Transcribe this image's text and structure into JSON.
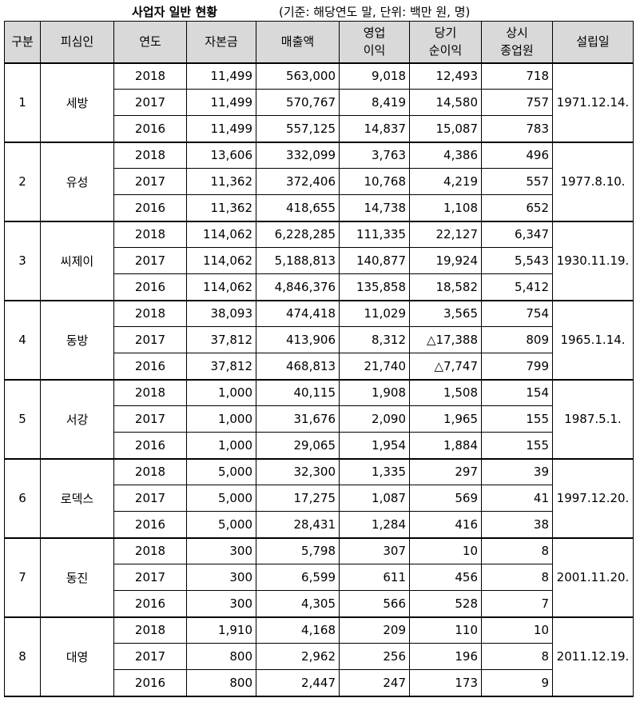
{
  "title": "사업자 일반 현황",
  "note": "(기준: 해당연도 말, 단위: 백만 원, 명)",
  "headers": {
    "no": "구분",
    "company": "피심인",
    "year": "연도",
    "capital": "자본금",
    "sales": "매출액",
    "op_line1": "영업",
    "op_line2": "이익",
    "net_line1": "당기",
    "net_line2": "순이익",
    "emp_line1": "상시",
    "emp_line2": "종업원",
    "founded": "설립일"
  },
  "companies": [
    {
      "no": "1",
      "name": "세방",
      "founded": "1971.12.14.",
      "rows": [
        {
          "year": "2018",
          "capital": "11,499",
          "sales": "563,000",
          "op": "9,018",
          "net": "12,493",
          "emp": "718"
        },
        {
          "year": "2017",
          "capital": "11,499",
          "sales": "570,767",
          "op": "8,419",
          "net": "14,580",
          "emp": "757"
        },
        {
          "year": "2016",
          "capital": "11,499",
          "sales": "557,125",
          "op": "14,837",
          "net": "15,087",
          "emp": "783"
        }
      ]
    },
    {
      "no": "2",
      "name": "유성",
      "founded": "1977.8.10.",
      "rows": [
        {
          "year": "2018",
          "capital": "13,606",
          "sales": "332,099",
          "op": "3,763",
          "net": "4,386",
          "emp": "496"
        },
        {
          "year": "2017",
          "capital": "11,362",
          "sales": "372,406",
          "op": "10,768",
          "net": "4,219",
          "emp": "557"
        },
        {
          "year": "2016",
          "capital": "11,362",
          "sales": "418,655",
          "op": "14,738",
          "net": "1,108",
          "emp": "652"
        }
      ]
    },
    {
      "no": "3",
      "name": "씨제이",
      "founded": "1930.11.19.",
      "rows": [
        {
          "year": "2018",
          "capital": "114,062",
          "sales": "6,228,285",
          "op": "111,335",
          "net": "22,127",
          "emp": "6,347"
        },
        {
          "year": "2017",
          "capital": "114,062",
          "sales": "5,188,813",
          "op": "140,877",
          "net": "19,924",
          "emp": "5,543"
        },
        {
          "year": "2016",
          "capital": "114,062",
          "sales": "4,846,376",
          "op": "135,858",
          "net": "18,582",
          "emp": "5,412"
        }
      ]
    },
    {
      "no": "4",
      "name": "동방",
      "founded": "1965.1.14.",
      "rows": [
        {
          "year": "2018",
          "capital": "38,093",
          "sales": "474,418",
          "op": "11,029",
          "net": "3,565",
          "emp": "754"
        },
        {
          "year": "2017",
          "capital": "37,812",
          "sales": "413,906",
          "op": "8,312",
          "net": "△17,388",
          "emp": "809"
        },
        {
          "year": "2016",
          "capital": "37,812",
          "sales": "468,813",
          "op": "21,740",
          "net": "△7,747",
          "emp": "799"
        }
      ]
    },
    {
      "no": "5",
      "name": "서강",
      "founded": "1987.5.1.",
      "rows": [
        {
          "year": "2018",
          "capital": "1,000",
          "sales": "40,115",
          "op": "1,908",
          "net": "1,508",
          "emp": "154"
        },
        {
          "year": "2017",
          "capital": "1,000",
          "sales": "31,676",
          "op": "2,090",
          "net": "1,965",
          "emp": "155"
        },
        {
          "year": "2016",
          "capital": "1,000",
          "sales": "29,065",
          "op": "1,954",
          "net": "1,884",
          "emp": "155"
        }
      ]
    },
    {
      "no": "6",
      "name": "로덱스",
      "founded": "1997.12.20.",
      "rows": [
        {
          "year": "2018",
          "capital": "5,000",
          "sales": "32,300",
          "op": "1,335",
          "net": "297",
          "emp": "39"
        },
        {
          "year": "2017",
          "capital": "5,000",
          "sales": "17,275",
          "op": "1,087",
          "net": "569",
          "emp": "41"
        },
        {
          "year": "2016",
          "capital": "5,000",
          "sales": "28,431",
          "op": "1,284",
          "net": "416",
          "emp": "38"
        }
      ]
    },
    {
      "no": "7",
      "name": "동진",
      "founded": "2001.11.20.",
      "rows": [
        {
          "year": "2018",
          "capital": "300",
          "sales": "5,798",
          "op": "307",
          "net": "10",
          "emp": "8"
        },
        {
          "year": "2017",
          "capital": "300",
          "sales": "6,599",
          "op": "611",
          "net": "456",
          "emp": "8"
        },
        {
          "year": "2016",
          "capital": "300",
          "sales": "4,305",
          "op": "566",
          "net": "528",
          "emp": "7"
        }
      ]
    },
    {
      "no": "8",
      "name": "대영",
      "founded": "2011.12.19.",
      "rows": [
        {
          "year": "2018",
          "capital": "1,910",
          "sales": "4,168",
          "op": "209",
          "net": "110",
          "emp": "10"
        },
        {
          "year": "2017",
          "capital": "800",
          "sales": "2,962",
          "op": "256",
          "net": "196",
          "emp": "8"
        },
        {
          "year": "2016",
          "capital": "800",
          "sales": "2,447",
          "op": "247",
          "net": "173",
          "emp": "9"
        }
      ]
    }
  ]
}
